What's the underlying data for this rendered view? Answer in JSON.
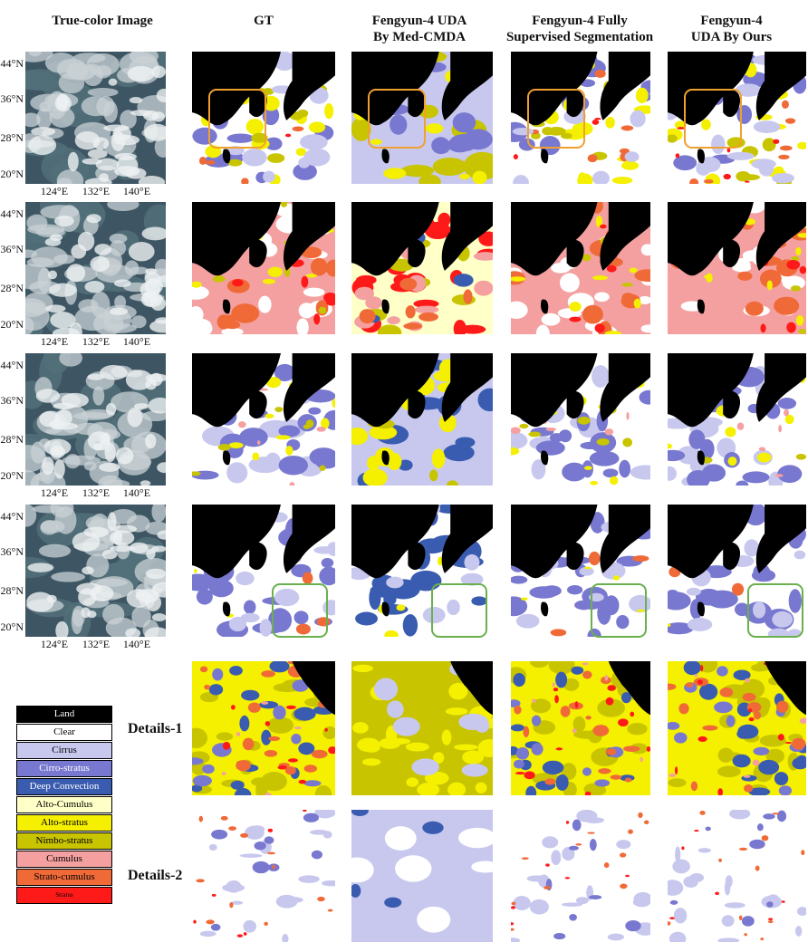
{
  "headers": {
    "col0": "True-color Image",
    "col1": "GT",
    "col2_line1": "Fengyun-4 UDA",
    "col2_line2": "By Med-CMDA",
    "col3_line1": "Fengyun-4 Fully",
    "col3_line2": "Supervised Segmentation",
    "col4_line1": "Fengyun-4",
    "col4_line2": "UDA By Ours"
  },
  "lat_labels": [
    "44°N",
    "36°N",
    "28°N",
    "20°N"
  ],
  "lon_labels": [
    "124°E",
    "132°E",
    "140°E"
  ],
  "row_labels": {
    "details1": "Details-1",
    "details2": "Details-2"
  },
  "legend": [
    {
      "label": "Land",
      "color": "#000000",
      "text_color": "#ffffff"
    },
    {
      "label": "Clear",
      "color": "#ffffff",
      "text_color": "#000000"
    },
    {
      "label": "Cirrus",
      "color": "#c8c8ee",
      "text_color": "#000000"
    },
    {
      "label": "Cirro-stratus",
      "color": "#7878d0",
      "text_color": "#ffffff"
    },
    {
      "label": "Deep Convection",
      "color": "#3a5cb0",
      "text_color": "#ffffff"
    },
    {
      "label": "Alto-Cumulus",
      "color": "#ffffc8",
      "text_color": "#000000"
    },
    {
      "label": "Alto-stratus",
      "color": "#f4f000",
      "text_color": "#000000"
    },
    {
      "label": "Nimbo-stratus",
      "color": "#c8c400",
      "text_color": "#000000"
    },
    {
      "label": "Cumulus",
      "color": "#f4a0a0",
      "text_color": "#000000"
    },
    {
      "label": "Strato-cumulus",
      "color": "#f06a38",
      "text_color": "#000000"
    },
    {
      "label": "Stratus",
      "color": "#ff1a1a",
      "text_color": "#000000"
    }
  ],
  "highlight_colors": {
    "row1": "#f0a030",
    "row4": "#6ab04c"
  }
}
